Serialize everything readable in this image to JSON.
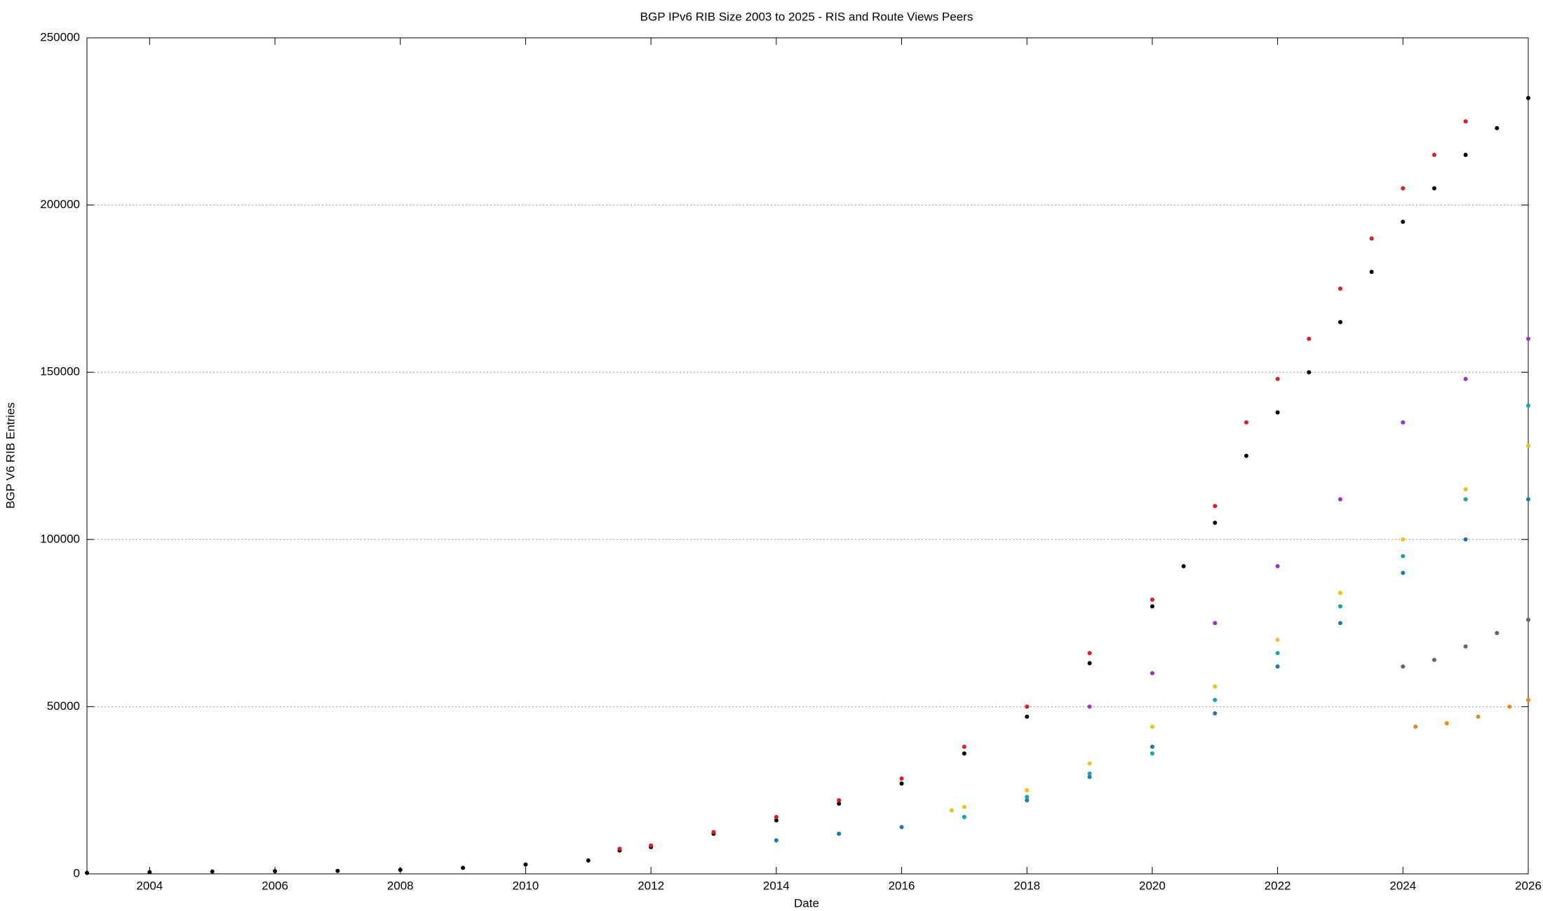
{
  "chart_data": {
    "type": "scatter",
    "title": "BGP IPv6 RIB Size 2003 to 2025 - RIS and Route Views Peers",
    "xlabel": "Date",
    "ylabel": "BGP V6 RIB Entries",
    "xlim": [
      2003,
      2026
    ],
    "xticks": [
      2004,
      2006,
      2008,
      2010,
      2012,
      2014,
      2016,
      2018,
      2020,
      2022,
      2024,
      2026
    ],
    "ylim": [
      0,
      250000
    ],
    "yticks": [
      0,
      50000,
      100000,
      150000,
      200000,
      250000
    ],
    "grid": true,
    "series": [
      {
        "color": "#000000",
        "x": [
          2003,
          2004,
          2005,
          2006,
          2007,
          2008,
          2009,
          2010,
          2011,
          2011.5,
          2012,
          2013,
          2014,
          2015,
          2016,
          2017,
          2018,
          2019,
          2020,
          2020.5,
          2021,
          2021.5,
          2022,
          2022.5,
          2023,
          2023.5,
          2024,
          2024.5,
          2025,
          2025.5,
          2026
        ],
        "values": [
          300,
          500,
          700,
          800,
          900,
          1200,
          1800,
          2800,
          4000,
          7000,
          8000,
          12000,
          16000,
          21000,
          27000,
          36000,
          47000,
          63000,
          80000,
          92000,
          105000,
          125000,
          138000,
          150000,
          165000,
          180000,
          195000,
          205000,
          215000,
          223000,
          232000
        ]
      },
      {
        "color": "#e41a1c",
        "x": [
          2011.5,
          2012,
          2013,
          2014,
          2015,
          2016,
          2017,
          2018,
          2019,
          2020,
          2021,
          2021.5,
          2022,
          2022.5,
          2023,
          2023.5,
          2024,
          2024.5,
          2025
        ],
        "values": [
          7500,
          8500,
          12500,
          17000,
          22000,
          28500,
          38000,
          50000,
          66000,
          82000,
          110000,
          135000,
          148000,
          160000,
          175000,
          190000,
          205000,
          215000,
          225000
        ]
      },
      {
        "color": "#1f78b4",
        "x": [
          2014,
          2015,
          2016,
          2017,
          2018,
          2019,
          2020,
          2021,
          2022,
          2023,
          2024,
          2025,
          2026
        ],
        "values": [
          10000,
          12000,
          14000,
          17000,
          22000,
          29000,
          38000,
          48000,
          62000,
          75000,
          90000,
          100000,
          112000
        ]
      },
      {
        "color": "#f0c020",
        "x": [
          2016.8,
          2017,
          2018,
          2019,
          2020,
          2021,
          2022,
          2023,
          2024,
          2025,
          2026
        ],
        "values": [
          19000,
          20000,
          25000,
          33000,
          44000,
          56000,
          70000,
          84000,
          100000,
          115000,
          128000
        ]
      },
      {
        "color": "#9933cc",
        "x": [
          2019,
          2020,
          2021,
          2022,
          2023,
          2024,
          2025,
          2026
        ],
        "values": [
          50000,
          60000,
          75000,
          92000,
          112000,
          135000,
          148000,
          160000
        ]
      },
      {
        "color": "#17a5a5",
        "x": [
          2017,
          2018,
          2019,
          2020,
          2021,
          2022,
          2023,
          2024,
          2025,
          2026
        ],
        "values": [
          17000,
          23000,
          30000,
          36000,
          52000,
          66000,
          80000,
          95000,
          112000,
          140000
        ]
      },
      {
        "color": "#666666",
        "x": [
          2024,
          2024.5,
          2025,
          2025.5,
          2026
        ],
        "values": [
          62000,
          64000,
          68000,
          72000,
          76000
        ]
      },
      {
        "color": "#e88a1a",
        "x": [
          2024.2,
          2024.7,
          2025.2,
          2025.7,
          2026
        ],
        "values": [
          44000,
          45000,
          47000,
          50000,
          52000
        ]
      }
    ]
  }
}
